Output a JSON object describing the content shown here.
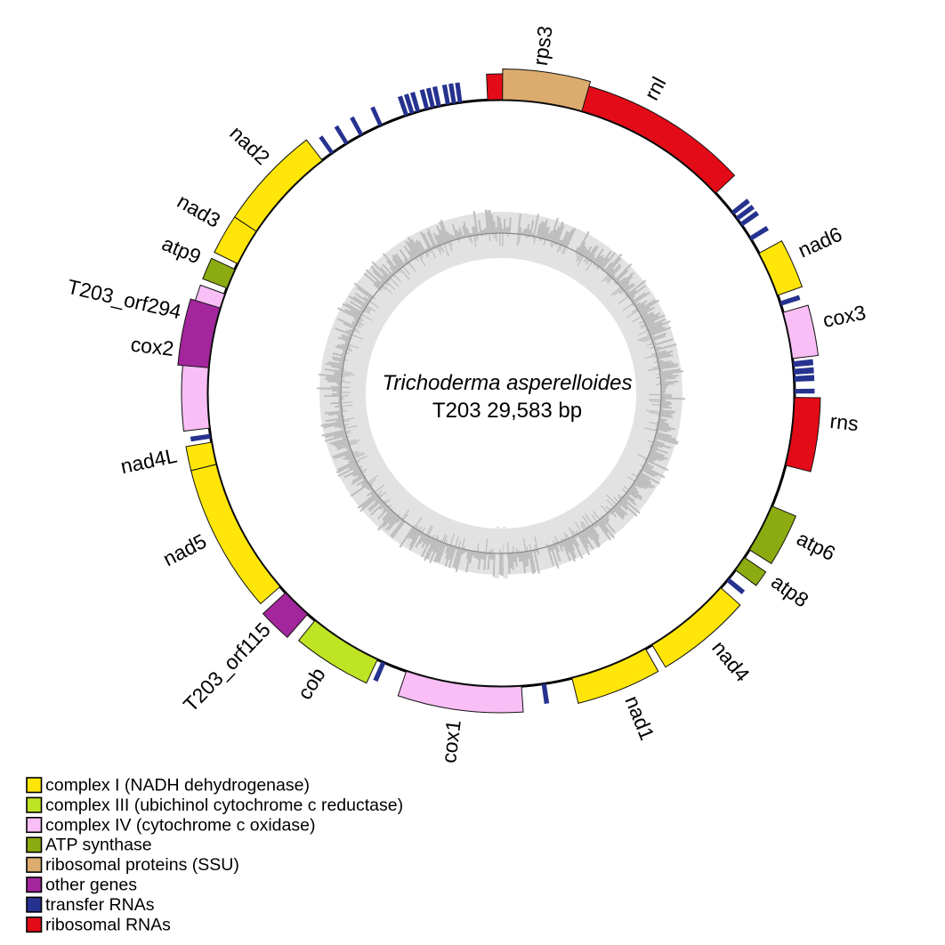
{
  "title": {
    "organism": "Trichoderma asperelloides",
    "size_line": "T203  29,583 bp"
  },
  "categories": {
    "complex_I": {
      "label": "complex I (NADH dehydrogenase)",
      "color": "#ffe608"
    },
    "complex_III": {
      "label": "complex III (ubichinol cytochrome c reductase)",
      "color": "#bfe424"
    },
    "complex_IV": {
      "label": "complex IV (cytochrome c oxidase)",
      "color": "#f9bef5"
    },
    "atp_synthase": {
      "label": "ATP synthase",
      "color": "#8cab11"
    },
    "ribosomal_proteins": {
      "label": "ribosomal proteins (SSU)",
      "color": "#dcab6e"
    },
    "other_genes": {
      "label": "other genes",
      "color": "#a3269c"
    },
    "transfer_RNAs": {
      "label": "transfer RNAs",
      "color": "#26328f"
    },
    "ribosomal_RNAs": {
      "label": "ribosomal RNAs",
      "color": "#e30b17"
    }
  },
  "legend_order": [
    "complex_I",
    "complex_III",
    "complex_IV",
    "atp_synthase",
    "ribosomal_proteins",
    "other_genes",
    "transfer_RNAs",
    "ribosomal_RNAs"
  ],
  "genes": [
    {
      "name": "rnl",
      "category": "ribosomal_RNAs",
      "start_deg": -2.6,
      "end_deg": 47.0,
      "label_deg": 28.0,
      "tall": false
    },
    {
      "name": "rps3",
      "category": "ribosomal_proteins",
      "start_deg": 0.3,
      "end_deg": 16.0,
      "label_deg": 8.0,
      "tall": true
    },
    {
      "name": "nad6",
      "category": "complex_I",
      "start_deg": 61.5,
      "end_deg": 70.5,
      "label_deg": 65.8,
      "tall": false
    },
    {
      "name": "cox3",
      "category": "complex_IV",
      "start_deg": 74.0,
      "end_deg": 83.2,
      "label_deg": 78.5,
      "tall": false
    },
    {
      "name": "rns",
      "category": "ribosomal_RNAs",
      "start_deg": 90.8,
      "end_deg": 104.2,
      "label_deg": 96.0,
      "tall": false
    },
    {
      "name": "atp6",
      "category": "atp_synthase",
      "start_deg": 112.6,
      "end_deg": 122.2,
      "label_deg": 117.0,
      "tall": false
    },
    {
      "name": "atp8",
      "category": "atp_synthase",
      "start_deg": 124.0,
      "end_deg": 127.0,
      "label_deg": 125.5,
      "tall": false
    },
    {
      "name": "nad4",
      "category": "complex_I",
      "start_deg": 131.5,
      "end_deg": 149.0,
      "label_deg": 140.5,
      "tall": false
    },
    {
      "name": "nad1",
      "category": "complex_I",
      "start_deg": 150.5,
      "end_deg": 166.0,
      "label_deg": 158.0,
      "tall": false
    },
    {
      "name": "cox1",
      "category": "complex_IV",
      "start_deg": 176.0,
      "end_deg": 198.8,
      "label_deg": 187.0,
      "tall": false
    },
    {
      "name": "cob",
      "category": "complex_III",
      "start_deg": 204.9,
      "end_deg": 219.3,
      "label_deg": 212.0,
      "tall": false
    },
    {
      "name": "T203_orf115",
      "category": "other_genes",
      "start_deg": 221.2,
      "end_deg": 227.2,
      "label_deg": 224.0,
      "tall": true
    },
    {
      "name": "nad5",
      "category": "complex_I",
      "start_deg": 228.8,
      "end_deg": 256.0,
      "label_deg": 242.5,
      "tall": false
    },
    {
      "name": "nad4L",
      "category": "complex_I",
      "start_deg": 256.0,
      "end_deg": 260.4,
      "label_deg": 258.0,
      "tall": false
    },
    {
      "name": "cox2",
      "category": "complex_IV",
      "start_deg": 263.2,
      "end_deg": 289.8,
      "label_deg": 276.5,
      "tall": false
    },
    {
      "name": "T203_orf294",
      "category": "other_genes",
      "start_deg": 275.0,
      "end_deg": 286.9,
      "label_deg": 283.0,
      "tall": true
    },
    {
      "name": "atp9",
      "category": "atp_synthase",
      "start_deg": 291.0,
      "end_deg": 295.0,
      "label_deg": 293.0,
      "tall": false
    },
    {
      "name": "nad3",
      "category": "complex_I",
      "start_deg": 296.2,
      "end_deg": 303.5,
      "label_deg": 300.0,
      "tall": false
    },
    {
      "name": "nad2",
      "category": "complex_I",
      "start_deg": 303.5,
      "end_deg": 322.5,
      "label_deg": 313.5,
      "tall": false
    }
  ],
  "trna_ticks": [
    {
      "deg": 52.1,
      "w": 0.9
    },
    {
      "deg": 53.5,
      "w": 0.9
    },
    {
      "deg": 54.9,
      "w": 0.9
    },
    {
      "deg": 58.2,
      "w": 0.9
    },
    {
      "deg": 72.2,
      "w": 0.9
    },
    {
      "deg": 84.3,
      "w": 1.1
    },
    {
      "deg": 85.8,
      "w": 1.1
    },
    {
      "deg": 87.2,
      "w": 1.1
    },
    {
      "deg": 89.6,
      "w": 0.9
    },
    {
      "deg": 129.4,
      "w": 0.9
    },
    {
      "deg": 171.6,
      "w": 0.9
    },
    {
      "deg": 203.6,
      "w": 0.9
    },
    {
      "deg": 261.6,
      "w": 0.9
    },
    {
      "deg": 324.9,
      "w": 0.8
    },
    {
      "deg": 328.3,
      "w": 0.8
    },
    {
      "deg": 331.6,
      "w": 0.8
    },
    {
      "deg": 335.8,
      "w": 0.8
    },
    {
      "deg": 341.2,
      "w": 0.85
    },
    {
      "deg": 342.4,
      "w": 0.85
    },
    {
      "deg": 343.6,
      "w": 0.85
    },
    {
      "deg": 345.4,
      "w": 0.85
    },
    {
      "deg": 346.6,
      "w": 0.85
    },
    {
      "deg": 347.8,
      "w": 0.85
    },
    {
      "deg": 349.6,
      "w": 0.85
    },
    {
      "deg": 350.8,
      "w": 0.85
    },
    {
      "deg": 352.0,
      "w": 0.85
    }
  ],
  "inner_ring": {
    "description": "GC content graph ring",
    "band_color": "#e2e2e2",
    "bar_color": "#bdbdbd",
    "baseline_color": "#8a8a8a"
  }
}
